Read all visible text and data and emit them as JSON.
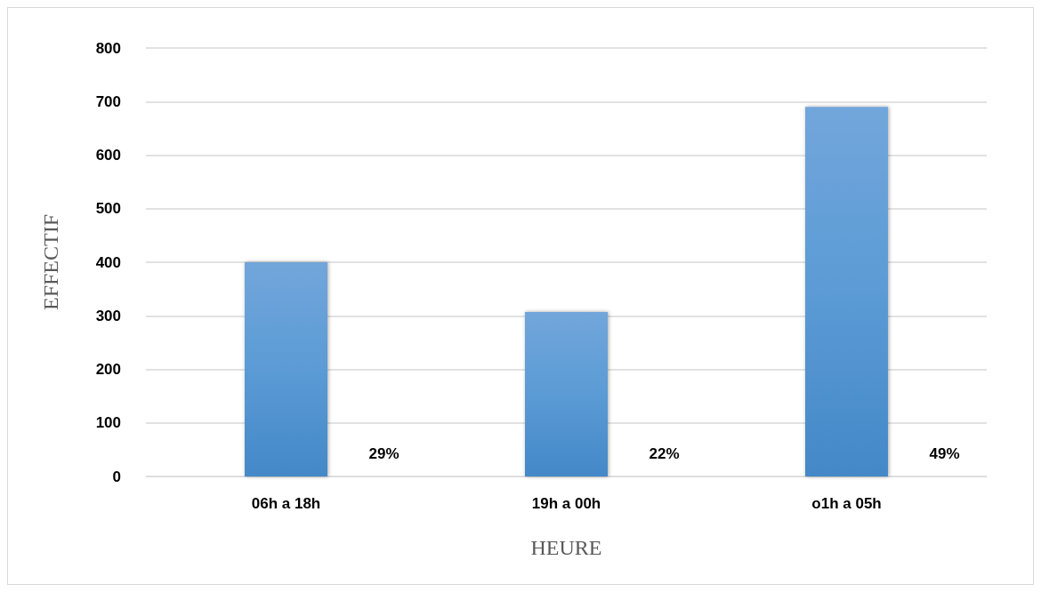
{
  "chart_data": {
    "type": "bar",
    "xlabel": "HEURE",
    "ylabel": "EFFECTIF",
    "categories": [
      "06h a 18h",
      "19h a 00h",
      "o1h a 05h"
    ],
    "values": [
      400,
      307,
      690
    ],
    "color": "#5b9bd5",
    "ylim": [
      0,
      800
    ],
    "yticks": [
      0,
      100,
      200,
      300,
      400,
      500,
      600,
      700,
      800
    ],
    "grid": "y",
    "annotations": [
      "29%",
      "22%",
      "49%"
    ]
  }
}
